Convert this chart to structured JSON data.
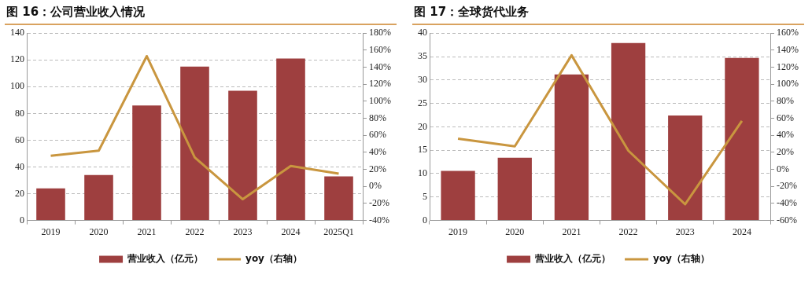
{
  "chart_data": [
    {
      "type": "bar",
      "title": "图 16：公司营业收入情况",
      "categories": [
        "2019",
        "2020",
        "2021",
        "2022",
        "2023",
        "2024",
        "2025Q1"
      ],
      "series": [
        {
          "name": "营业收入（亿元）",
          "color": "#9e3f3f",
          "values": [
            24,
            34,
            86,
            115,
            97,
            121,
            33
          ]
        },
        {
          "name": "yoy（右轴）",
          "type": "line",
          "axis": "y2",
          "color": "#c9963f",
          "values": [
            36,
            42,
            153,
            34,
            -15,
            24,
            15
          ]
        }
      ],
      "ylim": [
        0,
        140
      ],
      "yticks": [
        0,
        20,
        40,
        60,
        80,
        100,
        120,
        140
      ],
      "y2lim": [
        -40,
        180
      ],
      "y2ticks": [
        {
          "value": -40,
          "label": "-40%"
        },
        {
          "value": -20,
          "label": "-20%"
        },
        {
          "value": 0,
          "label": "0%"
        },
        {
          "value": 20,
          "label": "20%"
        },
        {
          "value": 40,
          "label": "40%"
        },
        {
          "value": 60,
          "label": "60%"
        },
        {
          "value": 80,
          "label": "80%"
        },
        {
          "value": 100,
          "label": "100%"
        },
        {
          "value": 120,
          "label": "120%"
        },
        {
          "value": 140,
          "label": "140%"
        },
        {
          "value": 160,
          "label": "160%"
        },
        {
          "value": 180,
          "label": "180%"
        }
      ],
      "grid": "y",
      "legend": "bottom",
      "marker": "none"
    },
    {
      "type": "bar",
      "title": "图 17：全球货代业务",
      "categories": [
        "2019",
        "2020",
        "2021",
        "2022",
        "2023",
        "2024"
      ],
      "series": [
        {
          "name": "营业收入（亿元）",
          "color": "#9e3f3f",
          "values": [
            10.6,
            13.4,
            31.2,
            37.9,
            22.4,
            34.7
          ]
        },
        {
          "name": "yoy（右轴）",
          "type": "line",
          "axis": "y2",
          "color": "#c9963f",
          "values": [
            36,
            27,
            134,
            22,
            -41,
            57
          ]
        }
      ],
      "ylim": [
        0,
        40
      ],
      "yticks": [
        0,
        5,
        10,
        15,
        20,
        25,
        30,
        35,
        40
      ],
      "y2lim": [
        -60,
        160
      ],
      "y2ticks": [
        {
          "value": -60,
          "label": "-60%"
        },
        {
          "value": -40,
          "label": "-40%"
        },
        {
          "value": -20,
          "label": "-20%"
        },
        {
          "value": 0,
          "label": "0%"
        },
        {
          "value": 20,
          "label": "20%"
        },
        {
          "value": 40,
          "label": "40%"
        },
        {
          "value": 60,
          "label": "60%"
        },
        {
          "value": 80,
          "label": "80%"
        },
        {
          "value": 100,
          "label": "100%"
        },
        {
          "value": 120,
          "label": "120%"
        },
        {
          "value": 140,
          "label": "140%"
        },
        {
          "value": 160,
          "label": "160%"
        }
      ],
      "grid": "y",
      "legend": "bottom",
      "marker": "none"
    }
  ]
}
